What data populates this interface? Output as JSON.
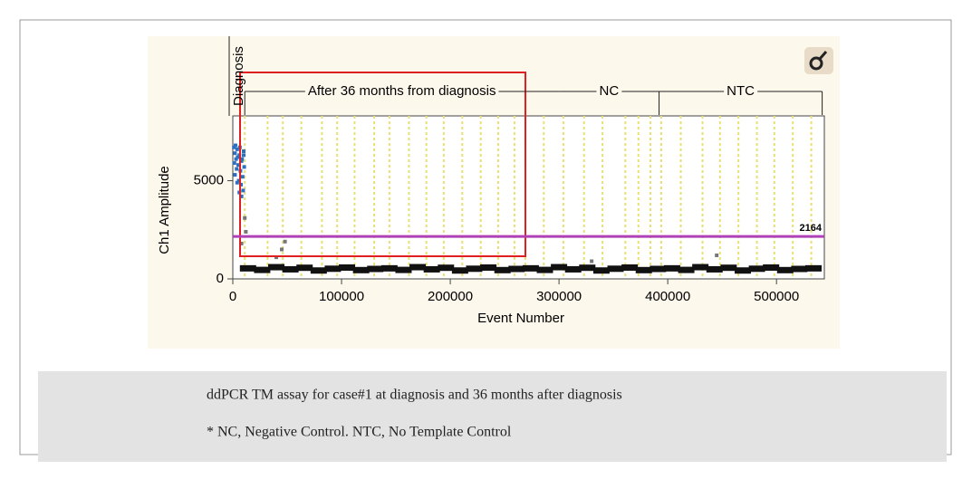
{
  "chart_data": {
    "type": "scatter",
    "xlabel": "Event Number",
    "ylabel": "Ch1 Amplitude",
    "xlim": [
      0,
      544000
    ],
    "ylim": [
      0,
      8300
    ],
    "xticks": [
      0,
      100000,
      200000,
      300000,
      400000,
      500000
    ],
    "yticks": [
      0,
      5000
    ],
    "threshold": 2164,
    "threshold_color": "#b040b8",
    "top_label": "Diagnosis",
    "groups": [
      {
        "label": "After 36 months from diagnosis",
        "range": [
          11000,
          300000
        ]
      },
      {
        "label": "NC",
        "range": [
          300000,
          392000
        ]
      },
      {
        "label": "NTC",
        "range": [
          392000,
          542000
        ]
      }
    ],
    "well_separators": [
      11000,
      32000,
      46000,
      63000,
      82000,
      96000,
      112000,
      130000,
      144000,
      162000,
      178000,
      194000,
      211000,
      228000,
      244000,
      259000,
      269000,
      286000,
      304000,
      323000,
      340000,
      361000,
      373000,
      384000,
      394000,
      412000,
      432000,
      448000,
      465000,
      482000,
      498000,
      515000,
      532000
    ],
    "separator_color": "#e8e070",
    "series": [
      {
        "color": "#2f6fc0",
        "x": [
          1000,
          2000,
          3000,
          4000,
          5000,
          6000,
          7000,
          8000,
          9000,
          10000,
          1500,
          2500,
          3500,
          4500,
          5500,
          6500,
          7500,
          8500,
          9500,
          10500,
          2000,
          4000,
          6000,
          8000,
          10000
        ],
        "values": [
          6700,
          6400,
          6100,
          6600,
          5800,
          6300,
          5500,
          6000,
          5200,
          6500,
          5900,
          6800,
          5600,
          6200,
          5000,
          6700,
          4800,
          6100,
          4500,
          5700,
          5300,
          4900,
          4400,
          4200,
          6300
        ]
      },
      {
        "color": "#111111",
        "x": [
          14000,
          27000,
          40000,
          53000,
          66000,
          79000,
          92000,
          105000,
          118000,
          131000,
          144000,
          157000,
          170000,
          183000,
          196000,
          209000,
          222000,
          235000,
          248000,
          261000,
          274000,
          287000,
          300000,
          313000,
          326000,
          339000,
          352000,
          365000,
          378000,
          391000,
          404000,
          417000,
          430000,
          443000,
          456000,
          469000,
          482000,
          495000,
          508000,
          521000,
          534000
        ],
        "values": [
          560,
          480,
          620,
          510,
          590,
          450,
          540,
          600,
          470,
          530,
          560,
          480,
          620,
          510,
          590,
          450,
          540,
          600,
          470,
          530,
          560,
          480,
          620,
          510,
          590,
          450,
          540,
          600,
          470,
          530,
          560,
          480,
          620,
          510,
          590,
          450,
          540,
          600,
          470,
          530,
          560
        ]
      },
      {
        "color": "#777777",
        "x": [
          8000,
          11000,
          12000,
          40000,
          45000,
          48000,
          330000,
          445000
        ],
        "values": [
          1800,
          3100,
          2400,
          1100,
          1500,
          1900,
          900,
          1200
        ]
      }
    ]
  },
  "caption": [
    "ddPCR TM assay for case#1 at diagnosis and 36 months after diagnosis",
    "* NC, Negative Control. NTC, No Template Control"
  ]
}
